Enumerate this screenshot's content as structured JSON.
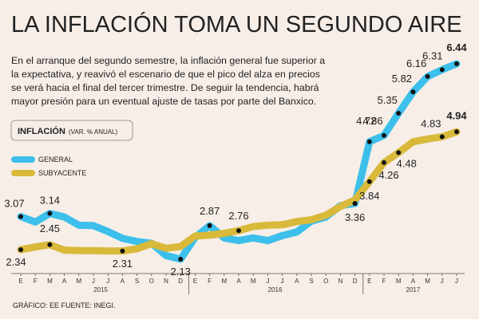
{
  "chart_data": {
    "type": "line",
    "title": "LA INFLACIÓN TOMA UN SEGUNDO AIRE",
    "text_lines": [
      "En el arranque del segundo semestre, la inflación general fue superior a",
      "la expectativa, y reavivó el escenario de que el pico del alza en precios",
      "se verá hacia el final del tercer trimestre. De seguir la tendencia, habrá",
      "mayor presión para un eventual ajuste de tasas por parte del Banxico."
    ],
    "legend_title": "INFLACIÓN",
    "legend_subtitle": "(VAR. % ANUAL)",
    "categories": [
      "E",
      "F",
      "M",
      "A",
      "M",
      "J",
      "J",
      "A",
      "S",
      "O",
      "N",
      "D",
      "E",
      "F",
      "M",
      "A",
      "M",
      "J",
      "J",
      "A",
      "S",
      "O",
      "N",
      "D",
      "E",
      "F",
      "M",
      "A",
      "M",
      "J",
      "J"
    ],
    "years": [
      "2015",
      "2016",
      "2017"
    ],
    "series": [
      {
        "name": "GENERAL",
        "color": "#3cbfea",
        "values": [
          3.07,
          2.95,
          3.14,
          3.06,
          2.88,
          2.87,
          2.74,
          2.59,
          2.52,
          2.48,
          2.21,
          2.13,
          2.61,
          2.87,
          2.6,
          2.54,
          2.6,
          2.54,
          2.65,
          2.73,
          2.97,
          3.06,
          3.31,
          3.36,
          4.72,
          4.86,
          5.35,
          5.82,
          6.16,
          6.31,
          6.44
        ],
        "value_labels": [
          "3.07",
          null,
          "3.14",
          null,
          null,
          null,
          null,
          null,
          null,
          null,
          null,
          "2.13",
          null,
          "2.87",
          null,
          null,
          null,
          null,
          null,
          null,
          null,
          null,
          null,
          "3.36",
          "4.72",
          "4.86",
          "5.35",
          "5.82",
          "6.16",
          "6.31",
          "6.44"
        ]
      },
      {
        "name": "SUBYACENTE",
        "color": "#d8b93a",
        "values": [
          2.34,
          2.4,
          2.45,
          2.33,
          2.32,
          2.32,
          2.31,
          2.31,
          2.36,
          2.47,
          2.37,
          2.41,
          2.64,
          2.66,
          2.7,
          2.76,
          2.85,
          2.88,
          2.89,
          2.96,
          3.0,
          3.1,
          3.29,
          3.44,
          3.84,
          4.26,
          4.48,
          4.72,
          4.78,
          4.83,
          4.94
        ],
        "value_labels": [
          "2.34",
          null,
          "2.45",
          null,
          null,
          null,
          null,
          "2.31",
          null,
          null,
          null,
          null,
          null,
          null,
          null,
          "2.76",
          null,
          null,
          null,
          null,
          null,
          null,
          null,
          null,
          "3.84",
          "4.26",
          "4.48",
          null,
          null,
          "4.83",
          "4.94"
        ]
      }
    ],
    "source": "GRÁFICO: EE  FUENTE: INEGI."
  }
}
